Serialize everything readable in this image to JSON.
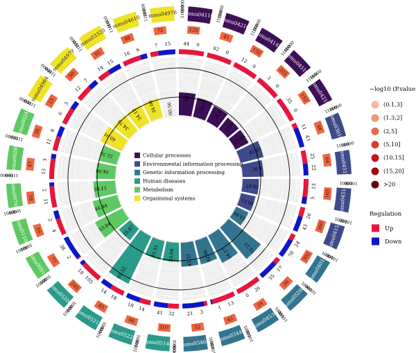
{
  "chart_data": {
    "type": "circos",
    "title": "",
    "categories": [
      {
        "name": "Cellular processes",
        "color": "#3d0f57"
      },
      {
        "name": "Environmental information processing",
        "color": "#3e4a8a"
      },
      {
        "name": "Genetic information processing",
        "color": "#32748e"
      },
      {
        "name": "Human diseases",
        "color": "#2a9a8a"
      },
      {
        "name": "Metabolism",
        "color": "#5ec863"
      },
      {
        "name": "Organismal systems",
        "color": "#f0e227"
      }
    ],
    "pathways": [
      {
        "id": "mmu04110",
        "cat": 0,
        "count": 125,
        "up": 44,
        "down": 0,
        "rich": 40,
        "pcls": 2
      },
      {
        "id": "mmu04216",
        "cat": 0,
        "count": 41,
        "up": 62,
        "down": 0,
        "rich": 34.15,
        "pcls": 2
      },
      {
        "id": "mmu04142",
        "cat": 0,
        "count": 132,
        "up": 12,
        "down": 0,
        "rich": 30.4,
        "pcls": 2
      },
      {
        "id": "mmu04510",
        "cat": 0,
        "count": 203,
        "up": 3,
        "down": 0,
        "rich": 25.6,
        "pcls": 3
      },
      {
        "id": "mmu04218",
        "cat": 0,
        "count": 152,
        "up": 35,
        "down": 0,
        "rich": 25.83,
        "pcls": 3
      },
      {
        "id": "mmu03010",
        "cat": 1,
        "count": 48,
        "up": 11,
        "down": 43,
        "rich": 41.67,
        "pcls": 2
      },
      {
        "id": "mmu04512",
        "cat": 1,
        "count": 64,
        "up": 25,
        "down": 22,
        "rich": 36.9,
        "pcls": 3
      },
      {
        "id": "mmu04514",
        "cat": 1,
        "count": 165,
        "up": 13,
        "down": 5,
        "rich": 28.67,
        "pcls": 2
      },
      {
        "id": "mmu04151",
        "cat": 1,
        "count": 360,
        "up": 26,
        "down": 43,
        "rich": 26.11,
        "pcls": 2
      },
      {
        "id": "mmu04010",
        "cat": 2,
        "count": 302,
        "up": 24,
        "down": 70,
        "rich": 23.84,
        "pcls": 2
      },
      {
        "id": "mmu05208",
        "cat": 2,
        "count": 36,
        "up": 17,
        "down": 55,
        "rich": 72.22,
        "pcls": 3
      },
      {
        "id": "mmu04530",
        "cat": 2,
        "count": 24,
        "up": 26,
        "down": 0,
        "rich": 54.17,
        "pcls": 2
      },
      {
        "id": "mmu03440",
        "cat": 2,
        "count": 42,
        "up": 13,
        "down": 1,
        "rich": 42.96,
        "pcls": 3
      },
      {
        "id": "mmu03460",
        "cat": 2,
        "count": 52,
        "up": 3,
        "down": 21,
        "rich": 42.31,
        "pcls": 2
      },
      {
        "id": "mmu05146",
        "cat": 3,
        "count": 107,
        "up": 32,
        "down": 41,
        "rich": 33.64,
        "pcls": 2
      },
      {
        "id": "mmu05222",
        "cat": 3,
        "count": 96,
        "up": 14,
        "down": 18,
        "rich": 33.33,
        "pcls": 2
      },
      {
        "id": "mmu05215",
        "cat": 3,
        "count": 83,
        "up": 18,
        "down": 14,
        "rich": 92.32,
        "pcls": 3
      },
      {
        "id": "mmu05200",
        "cat": 3,
        "count": 245,
        "up": 105,
        "down": 18,
        "rich": 25.87,
        "pcls": 2
      },
      {
        "id": "mmu00910",
        "cat": 4,
        "count": 77,
        "up": 2,
        "down": 38,
        "rich": 53.84,
        "pcls": 2
      },
      {
        "id": "mmu01100",
        "cat": 4,
        "count": 16,
        "up": 4,
        "down": 2,
        "rich": 44.44,
        "pcls": 2
      },
      {
        "id": "mmu00760",
        "cat": 4,
        "count": 18,
        "up": 11,
        "down": 2,
        "rich": 38.11,
        "pcls": 2
      },
      {
        "id": "mmu00260",
        "cat": 4,
        "count": 47,
        "up": 13,
        "down": 3,
        "rich": 34.04,
        "pcls": 3
      },
      {
        "id": "mmu00240",
        "cat": 4,
        "count": 58,
        "up": 11,
        "down": 8,
        "rich": 32.76,
        "pcls": 2
      },
      {
        "id": "mmu04964",
        "cat": 5,
        "count": 23,
        "up": 6,
        "down": 3,
        "rich": 40.91,
        "pcls": 2
      },
      {
        "id": "mmu04979",
        "cat": 5,
        "count": 50,
        "up": 12,
        "down": 7,
        "rich": 34.78,
        "pcls": 2
      },
      {
        "id": "mmu03320",
        "cat": 5,
        "count": 85,
        "up": 14,
        "down": 15,
        "rich": 34.12,
        "pcls": 2
      },
      {
        "id": "mmu04610",
        "cat": 5,
        "count": 88,
        "up": 16,
        "down": 6,
        "rich": 34.0,
        "pcls": 2
      },
      {
        "id": "mmu04976",
        "cat": 5,
        "count": 72,
        "up": 7,
        "down": 15,
        "rich": 0.56,
        "pcls": 2
      }
    ],
    "rich_labels": [
      "40",
      "34.15",
      "30.4",
      "25.6",
      "25.83",
      "41.67",
      "36.9",
      "28.67",
      "26.11",
      "23.84",
      "72.22",
      "54.17",
      "42.96",
      "42.31",
      "33.64",
      "33.33",
      "92.32",
      "25.87",
      "53.84",
      "44.44",
      "38.11",
      "34.04",
      "32.76",
      "40.91",
      "34.78",
      "34.12",
      "34.00",
      "00.56"
    ],
    "scale_ticks": [
      "1000",
      "100",
      "10",
      "1"
    ],
    "legend": {
      "pvalue_title": "−log10 (P.value)",
      "pvalue_items": [
        {
          "label": "(0.1,3]",
          "color": "#f6b8a2"
        },
        {
          "label": "(1.3,2]",
          "color": "#f0957a"
        },
        {
          "label": "(2,5]",
          "color": "#ea6a50"
        },
        {
          "label": "(5,10]",
          "color": "#e03a2e"
        },
        {
          "label": "(10,15]",
          "color": "#c8141f"
        },
        {
          "label": "(15,20]",
          "color": "#9e0d17"
        },
        {
          "label": ">20",
          "color": "#5e0610"
        }
      ],
      "regulation_title": "Regulation",
      "regulation_items": [
        {
          "label": "Up",
          "color": "#e8163c"
        },
        {
          "label": "Down",
          "color": "#0c16c9"
        }
      ]
    },
    "colors": {
      "up": "#e8163c",
      "down": "#0c16c9",
      "count_box": "#f0653f",
      "track_bg": "#f0f0f0"
    }
  }
}
